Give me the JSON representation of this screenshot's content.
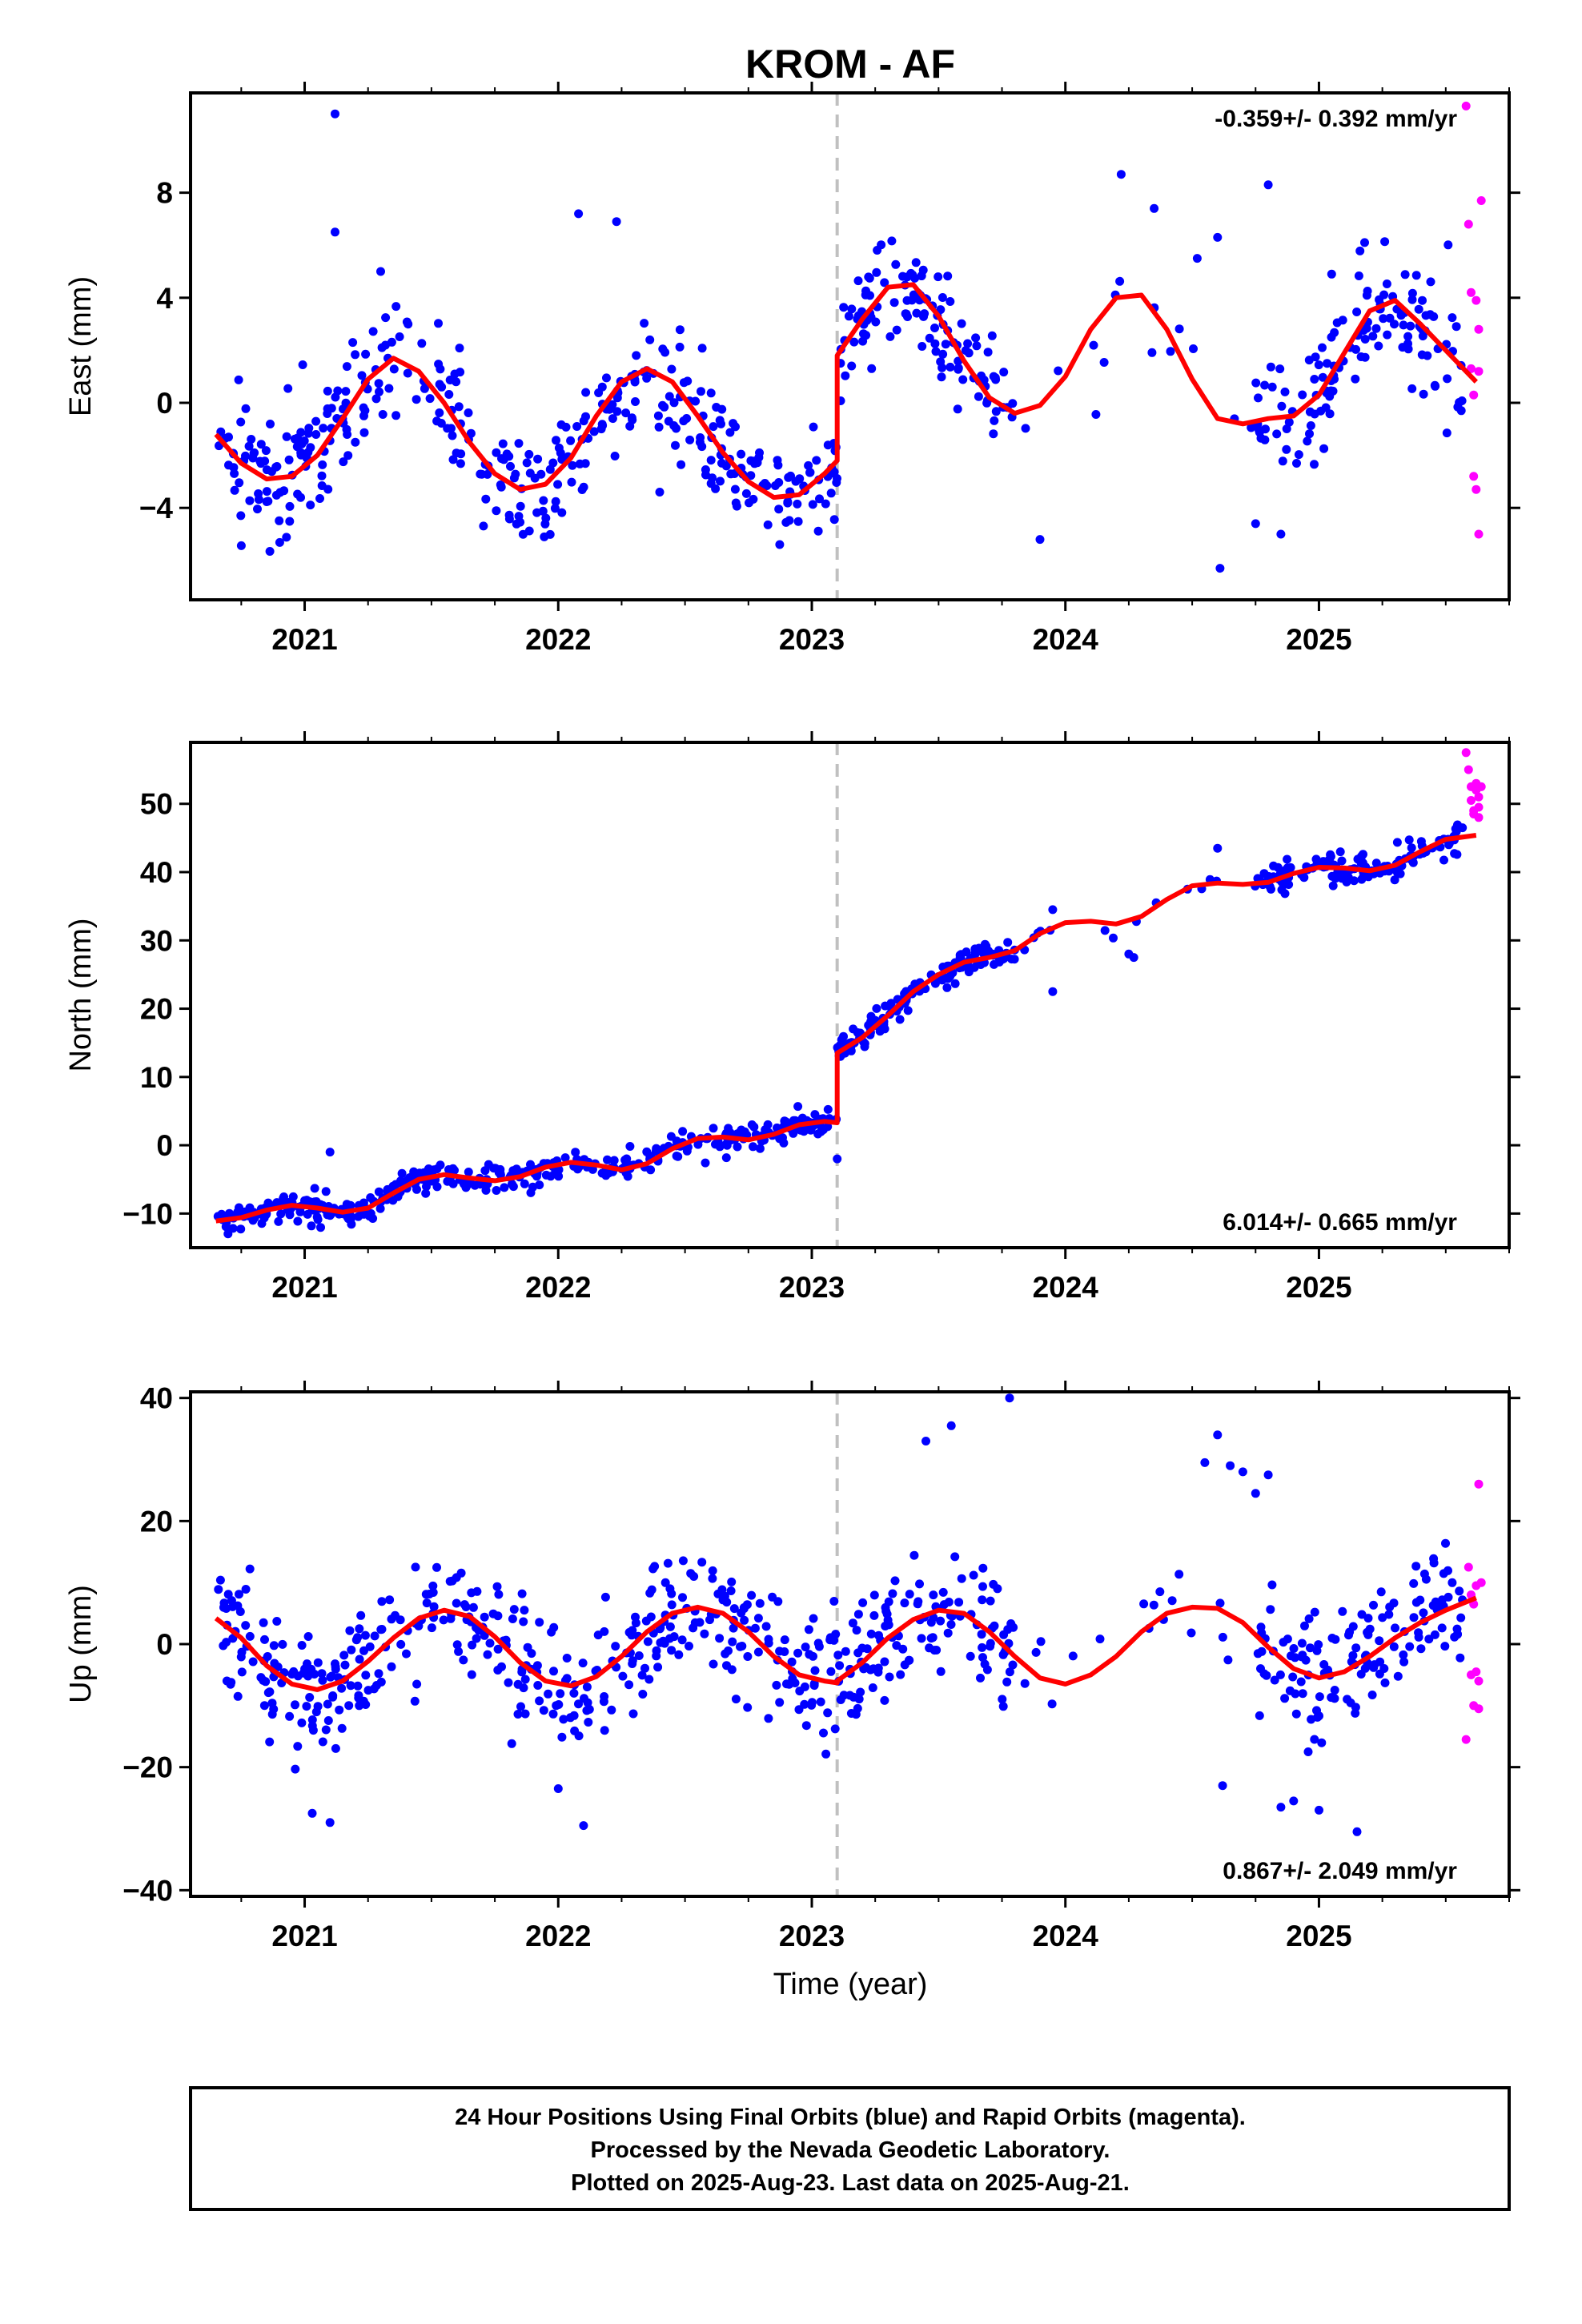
{
  "title": "KROM - AF",
  "xlabel": "Time (year)",
  "footer": {
    "line1": "24 Hour Positions Using Final Orbits (blue) and Rapid Orbits (magenta).",
    "line2": "Processed by the Nevada Geodetic Laboratory.",
    "line3": "Plotted on 2025-Aug-23. Last data on 2025-Aug-21."
  },
  "colors": {
    "final_orbits": "#0000ff",
    "rapid_orbits": "#ff00ff",
    "model_fit": "#ff0000",
    "equipment_change": "#c0c0c0"
  },
  "chart_data": [
    {
      "type": "scatter",
      "component": "East",
      "ylabel": "East (mm)",
      "annotation": "-0.359+/- 0.392 mm/yr",
      "annotation_position": "top-right",
      "xlim": [
        2020.55,
        2025.75
      ],
      "ylim": [
        -7.5,
        11.8
      ],
      "xticks": [
        2021,
        2022,
        2023,
        2024,
        2025
      ],
      "yticks": [
        -4,
        0,
        4,
        8
      ],
      "offset_epoch": 2023.1,
      "fit": {
        "x": [
          2020.65,
          2020.75,
          2020.85,
          2020.95,
          2021.05,
          2021.15,
          2021.25,
          2021.35,
          2021.45,
          2021.55,
          2021.65,
          2021.75,
          2021.85,
          2021.95,
          2022.05,
          2022.15,
          2022.25,
          2022.35,
          2022.45,
          2022.55,
          2022.65,
          2022.75,
          2022.85,
          2022.95,
          2023.05,
          2023.1,
          2023.1,
          2023.2,
          2023.3,
          2023.4,
          2023.5,
          2023.6,
          2023.7,
          2023.8,
          2023.9,
          2024.0,
          2024.1,
          2024.2,
          2024.3,
          2024.4,
          2024.5,
          2024.6,
          2024.7,
          2024.8,
          2024.9,
          2025.0,
          2025.1,
          2025.2,
          2025.3,
          2025.4,
          2025.5,
          2025.62
        ],
        "y": [
          -1.2,
          -2.3,
          -2.9,
          -2.8,
          -2.0,
          -0.6,
          0.9,
          1.7,
          1.2,
          0.0,
          -1.5,
          -2.7,
          -3.3,
          -3.1,
          -2.1,
          -0.5,
          0.8,
          1.3,
          0.8,
          -0.5,
          -1.9,
          -3.0,
          -3.6,
          -3.5,
          -2.7,
          -2.2,
          1.8,
          3.2,
          4.4,
          4.5,
          3.3,
          1.6,
          0.2,
          -0.4,
          -0.1,
          1.0,
          2.8,
          4.0,
          4.1,
          2.8,
          0.9,
          -0.6,
          -0.8,
          -0.6,
          -0.5,
          0.3,
          1.9,
          3.5,
          3.9,
          3.0,
          2.0,
          0.8
        ]
      },
      "rapid_points": {
        "x": [
          2025.58,
          2025.59,
          2025.6,
          2025.6,
          2025.61,
          2025.61,
          2025.62,
          2025.62,
          2025.63,
          2025.63,
          2025.63,
          2025.64
        ],
        "y": [
          11.3,
          6.8,
          4.2,
          1.3,
          0.3,
          -2.8,
          -3.3,
          3.9,
          2.8,
          1.2,
          -5.0,
          7.7
        ]
      },
      "final_points": {
        "seed": 11,
        "count": 820,
        "scatter_sd": 1.1,
        "sparse_interval": [
          2023.8,
          2024.75
        ],
        "outliers": {
          "x": [
            2021.12,
            2021.12,
            2022.08,
            2022.23,
            2023.9,
            2024.22,
            2024.35,
            2024.52,
            2024.6,
            2024.61,
            2024.8,
            2024.75,
            2024.85,
            2025.18,
            2025.05,
            2021.3,
            2022.4
          ],
          "y": [
            11.0,
            6.5,
            7.2,
            6.9,
            -5.2,
            8.7,
            7.4,
            5.5,
            6.3,
            -6.3,
            8.3,
            -4.6,
            -5.0,
            6.1,
            4.9,
            5.0,
            -3.4
          ]
        }
      }
    },
    {
      "type": "scatter",
      "component": "North",
      "ylabel": "North (mm)",
      "annotation": "6.014+/- 0.665 mm/yr",
      "annotation_position": "bottom-right",
      "xlim": [
        2020.55,
        2025.75
      ],
      "ylim": [
        -15,
        59
      ],
      "xticks": [
        2021,
        2022,
        2023,
        2024,
        2025
      ],
      "yticks": [
        -10,
        0,
        10,
        20,
        30,
        40,
        50
      ],
      "offset_epoch": 2023.1,
      "fit": {
        "x": [
          2020.65,
          2020.75,
          2020.85,
          2020.95,
          2021.05,
          2021.15,
          2021.25,
          2021.35,
          2021.45,
          2021.55,
          2021.65,
          2021.75,
          2021.85,
          2021.95,
          2022.05,
          2022.15,
          2022.25,
          2022.35,
          2022.45,
          2022.55,
          2022.65,
          2022.75,
          2022.85,
          2022.95,
          2023.05,
          2023.1,
          2023.1,
          2023.2,
          2023.3,
          2023.4,
          2023.5,
          2023.6,
          2023.7,
          2023.8,
          2023.9,
          2024.0,
          2024.1,
          2024.2,
          2024.3,
          2024.4,
          2024.5,
          2024.6,
          2024.7,
          2024.8,
          2024.9,
          2025.0,
          2025.1,
          2025.2,
          2025.3,
          2025.4,
          2025.5,
          2025.62
        ],
        "y": [
          -11.1,
          -10.6,
          -9.5,
          -8.8,
          -9.2,
          -9.8,
          -9.2,
          -7.0,
          -5.0,
          -4.3,
          -4.8,
          -5.2,
          -4.6,
          -3.2,
          -2.5,
          -2.9,
          -3.6,
          -2.7,
          -0.5,
          1.0,
          1.2,
          0.8,
          1.6,
          3.0,
          3.5,
          3.3,
          13.5,
          15.8,
          19.0,
          22.5,
          25.0,
          26.8,
          27.5,
          28.5,
          31.0,
          32.6,
          32.8,
          32.4,
          33.5,
          36.0,
          38.0,
          38.4,
          38.2,
          38.5,
          39.8,
          40.7,
          40.6,
          40.2,
          41.0,
          43.0,
          44.8,
          45.4
        ]
      },
      "rapid_points": {
        "x": [
          2025.58,
          2025.59,
          2025.6,
          2025.6,
          2025.61,
          2025.61,
          2025.62,
          2025.62,
          2025.63,
          2025.63,
          2025.63,
          2025.64
        ],
        "y": [
          57.5,
          55.0,
          52.5,
          50.5,
          49.0,
          48.5,
          52.0,
          53.0,
          51.0,
          49.5,
          48.0,
          52.5
        ]
      },
      "final_points": {
        "seed": 23,
        "count": 820,
        "scatter_sd": 1.0,
        "sparse_interval": [
          2023.8,
          2024.75
        ],
        "outliers": {
          "x": [
            2021.1,
            2023.1,
            2023.95,
            2024.25,
            2024.27,
            2024.6,
            2023.95
          ],
          "y": [
            -1.0,
            -2.0,
            34.5,
            28.0,
            27.5,
            43.5,
            22.5
          ]
        }
      }
    },
    {
      "type": "scatter",
      "component": "Up",
      "ylabel": "Up (mm)",
      "annotation": "0.867+/- 2.049 mm/yr",
      "annotation_position": "bottom-right",
      "xlim": [
        2020.55,
        2025.75
      ],
      "ylim": [
        -41,
        41
      ],
      "xticks": [
        2021,
        2022,
        2023,
        2024,
        2025
      ],
      "yticks": [
        -40,
        -20,
        0,
        20,
        40
      ],
      "offset_epoch": 2023.1,
      "fit": {
        "x": [
          2020.65,
          2020.75,
          2020.85,
          2020.95,
          2021.05,
          2021.15,
          2021.25,
          2021.35,
          2021.45,
          2021.55,
          2021.65,
          2021.75,
          2021.85,
          2021.95,
          2022.05,
          2022.15,
          2022.25,
          2022.35,
          2022.45,
          2022.55,
          2022.65,
          2022.75,
          2022.85,
          2022.95,
          2023.05,
          2023.1,
          2023.1,
          2023.2,
          2023.3,
          2023.4,
          2023.5,
          2023.6,
          2023.7,
          2023.8,
          2023.9,
          2024.0,
          2024.1,
          2024.2,
          2024.3,
          2024.4,
          2024.5,
          2024.6,
          2024.7,
          2024.8,
          2024.9,
          2025.0,
          2025.1,
          2025.2,
          2025.3,
          2025.4,
          2025.5,
          2025.62
        ],
        "y": [
          4.2,
          1.0,
          -3.5,
          -6.5,
          -7.4,
          -6.0,
          -2.8,
          1.0,
          4.2,
          5.5,
          4.5,
          1.2,
          -3.0,
          -6.0,
          -6.8,
          -5.3,
          -2.0,
          2.0,
          5.0,
          6.0,
          5.0,
          2.0,
          -2.0,
          -5.0,
          -6.0,
          -6.3,
          -6.0,
          -3.0,
          1.0,
          4.0,
          5.5,
          5.0,
          2.0,
          -2.0,
          -5.5,
          -6.5,
          -5.0,
          -2.0,
          2.0,
          5.0,
          6.0,
          5.8,
          3.5,
          -0.5,
          -4.0,
          -5.5,
          -4.5,
          -2.0,
          1.0,
          3.5,
          5.5,
          7.5
        ]
      },
      "rapid_points": {
        "x": [
          2025.58,
          2025.59,
          2025.6,
          2025.6,
          2025.61,
          2025.61,
          2025.62,
          2025.62,
          2025.63,
          2025.63,
          2025.63,
          2025.64
        ],
        "y": [
          -15.5,
          12.5,
          8.0,
          -5.0,
          -10.0,
          6.5,
          -4.5,
          9.5,
          26.0,
          -10.5,
          -6.0,
          10.0
        ]
      },
      "final_points": {
        "seed": 37,
        "count": 820,
        "scatter_sd": 5.2,
        "sparse_interval": [
          2023.8,
          2024.75
        ],
        "outliers": {
          "x": [
            2021.03,
            2021.1,
            2022.1,
            2023.55,
            2023.78,
            2024.55,
            2024.6,
            2024.65,
            2024.7,
            2024.75,
            2024.8,
            2024.62,
            2025.15,
            2025.0,
            2024.9,
            2024.85,
            2022.0,
            2023.45
          ],
          "y": [
            -27.5,
            -29.0,
            -29.5,
            35.5,
            40.0,
            29.5,
            34.0,
            29.0,
            28.0,
            24.5,
            27.5,
            -23.0,
            -30.5,
            -27.0,
            -25.5,
            -26.5,
            -23.5,
            33.0
          ]
        }
      }
    }
  ]
}
